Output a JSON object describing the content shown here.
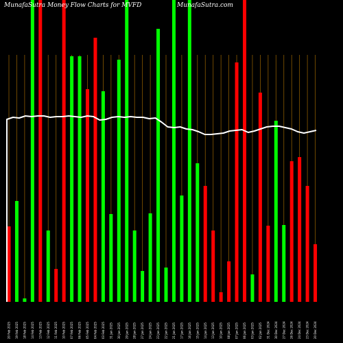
{
  "header": {
    "left_title": "MunafaSutra  Money Flow  Charts for MVFD",
    "right_title": "MunafaSutra.com"
  },
  "colors": {
    "background": "#000000",
    "up": "#00ff00",
    "down": "#ff0000",
    "gridline": "#8b5a00",
    "line": "#ffffff",
    "text": "#ffffff"
  },
  "chart_data": {
    "type": "bar",
    "title": "MunafaSutra  Money Flow  Charts for MVFD",
    "categories": [
      "20 Feb 2025",
      "19 Feb 2025",
      "18 Feb 2025",
      "14 Feb 2025",
      "13 Feb 2025",
      "12 Feb 2025",
      "11 Feb 2025",
      "10 Feb 2025",
      "07 Feb 2025",
      "06 Feb 2025",
      "05 Feb 2025",
      "04 Feb 2025",
      "03 Feb 2025",
      "31 Jan 2025",
      "30 Jan 2025",
      "29 Jan 2025",
      "28 Jan 2025",
      "27 Jan 2025",
      "24 Jan 2025",
      "23 Jan 2025",
      "22 Jan 2025",
      "21 Jan 2025",
      "17 Jan 2025",
      "16 Jan 2025",
      "15 Jan 2025",
      "14 Jan 2025",
      "13 Jan 2025",
      "10 Jan 2025",
      "08 Jan 2025",
      "07 Jan 2025",
      "06 Jan 2025",
      "03 Jan 2025",
      "02 Jan 2025",
      "31 Dec 2024",
      "30 Dec 2024",
      "27 Dec 2024",
      "26 Dec 2024",
      "24 Dec 2024",
      "23 Dec 2024",
      "20 Dec 2024"
    ],
    "values": [
      110,
      147,
      5,
      440,
      440,
      104,
      48,
      440,
      358,
      358,
      310,
      385,
      307,
      128,
      353,
      440,
      104,
      45,
      129,
      398,
      50,
      440,
      155,
      440,
      202,
      169,
      104,
      14,
      59,
      349,
      440,
      40,
      305,
      111,
      264,
      112,
      205,
      211,
      169,
      84
    ],
    "directions": [
      "down",
      "up",
      "up",
      "up",
      "down",
      "up",
      "down",
      "down",
      "up",
      "up",
      "down",
      "down",
      "up",
      "up",
      "up",
      "up",
      "up",
      "up",
      "up",
      "up",
      "up",
      "up",
      "up",
      "up",
      "up",
      "down",
      "down",
      "down",
      "down",
      "down",
      "down",
      "up",
      "down",
      "down",
      "up",
      "up",
      "down",
      "down",
      "down",
      "down"
    ],
    "line": [
      266,
      269,
      268,
      271,
      270,
      271,
      271,
      269,
      270,
      270,
      271,
      270,
      269,
      271,
      270,
      265,
      266,
      269,
      270,
      269,
      270,
      269,
      269,
      267,
      268,
      262,
      255,
      254,
      255,
      252,
      251,
      248,
      244,
      244,
      245,
      246,
      249,
      250,
      251,
      247,
      249,
      252,
      255,
      256,
      256,
      254,
      252,
      248,
      246,
      248,
      250
    ],
    "ylim": [
      0,
      440
    ],
    "grid": true
  }
}
